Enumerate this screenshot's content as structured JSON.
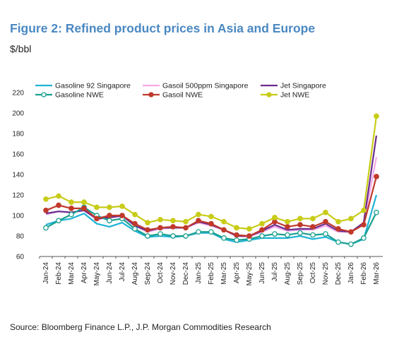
{
  "title": "Figure 2: Refined product prices in Asia and Europe",
  "unit": "$/bbl",
  "source": "Source: Bloomberg Finance L.P., J.P. Morgan Commodities Research",
  "chart_data": {
    "type": "line",
    "title": "Figure 2: Refined product prices in Asia and Europe",
    "ylabel": "$/bbl",
    "xlabel": "",
    "ylim": [
      60,
      220
    ],
    "yticks": [
      60,
      80,
      100,
      120,
      140,
      160,
      180,
      200,
      220
    ],
    "grid": false,
    "legend": "top",
    "categories": [
      "Jan-24",
      "Feb-24",
      "Mar-24",
      "Apr-24",
      "May-24",
      "Jun-24",
      "Jul-24",
      "Aug-24",
      "Sep-24",
      "Oct-24",
      "Nov-24",
      "Dec-24",
      "Jan-25",
      "Feb-25",
      "Mar-25",
      "Apr-25",
      "May-25",
      "Jun-25",
      "Jul-25",
      "Aug-25",
      "Sep-25",
      "Oct-25",
      "Nov-25",
      "Dec-25",
      "Jan-26",
      "Feb-26",
      "Mar-26"
    ],
    "series": [
      {
        "name": "Gasoline 92 Singapore",
        "color": "#1fb3d6",
        "marker": "none",
        "values": [
          91,
          95,
          97,
          102,
          92,
          89,
          93,
          85,
          79,
          80,
          79,
          80,
          83,
          83,
          77,
          74,
          76,
          78,
          78,
          78,
          80,
          77,
          79,
          74,
          72,
          77,
          120
        ]
      },
      {
        "name": "Gasoil 500ppm Singapore",
        "color": "#f4a8e6",
        "marker": "none",
        "values": [
          101,
          104,
          103,
          105,
          96,
          98,
          99,
          90,
          84,
          87,
          88,
          88,
          93,
          90,
          86,
          80,
          79,
          84,
          89,
          85,
          86,
          86,
          90,
          84,
          84,
          92,
          157
        ]
      },
      {
        "name": "Jet Singapore",
        "color": "#6a2c8e",
        "marker": "none",
        "values": [
          102,
          104,
          103,
          105,
          97,
          98,
          100,
          90,
          85,
          88,
          88,
          88,
          94,
          91,
          86,
          80,
          80,
          85,
          91,
          86,
          87,
          87,
          92,
          85,
          84,
          93,
          178
        ]
      },
      {
        "name": "Gasoline NWE",
        "color": "#1aa08f",
        "marker": "open",
        "values": [
          88,
          95,
          101,
          108,
          100,
          95,
          97,
          87,
          80,
          82,
          80,
          80,
          84,
          84,
          78,
          76,
          77,
          80,
          82,
          81,
          83,
          81,
          82,
          74,
          72,
          78,
          103
        ]
      },
      {
        "name": "Gasoil NWE",
        "color": "#c0392b",
        "marker": "filled",
        "values": [
          105,
          110,
          107,
          107,
          97,
          100,
          100,
          92,
          86,
          88,
          89,
          88,
          95,
          92,
          86,
          81,
          80,
          86,
          94,
          89,
          91,
          89,
          94,
          87,
          84,
          91,
          138
        ]
      },
      {
        "name": "Jet NWE",
        "color": "#c8cc18",
        "marker": "filled",
        "values": [
          116,
          119,
          113,
          113,
          108,
          108,
          109,
          101,
          93,
          96,
          95,
          94,
          101,
          99,
          94,
          88,
          87,
          92,
          98,
          94,
          97,
          97,
          103,
          94,
          97,
          105,
          197
        ]
      }
    ]
  }
}
